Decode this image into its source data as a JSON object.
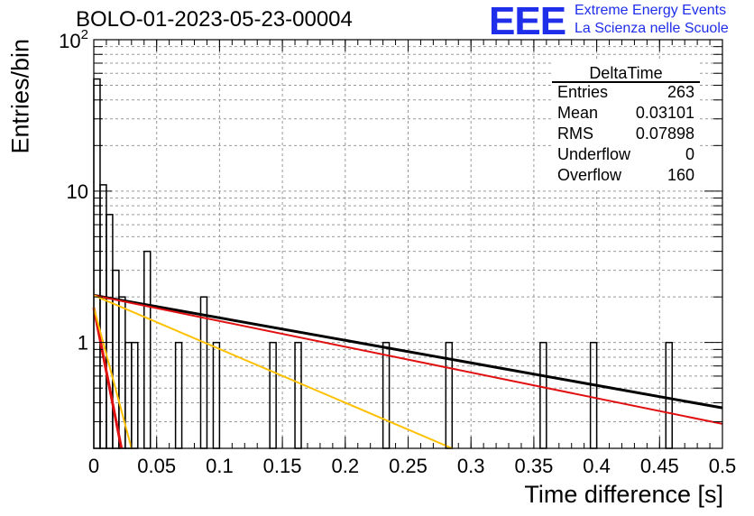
{
  "title": "BOLO-01-2023-05-23-00004",
  "branding": {
    "logo": "EEE",
    "line1": "Extreme Energy Events",
    "line2": "La Scienza nelle Scuole"
  },
  "stats_box": {
    "name": "DeltaTime",
    "rows": [
      {
        "label": "Entries",
        "value": "263"
      },
      {
        "label": "Mean",
        "value": "0.03101"
      },
      {
        "label": "RMS",
        "value": "0.07898"
      },
      {
        "label": "Underflow",
        "value": "0"
      },
      {
        "label": "Overflow",
        "value": "160"
      }
    ]
  },
  "chart_data": {
    "type": "bar",
    "title": "BOLO-01-2023-05-23-00004",
    "xlabel": "Time difference [s]",
    "ylabel": "Entries/bin",
    "xlim": [
      0,
      0.5
    ],
    "ylim": [
      0.2,
      100
    ],
    "y_scale": "log",
    "grid": true,
    "x_ticks": [
      "0",
      "0.05",
      "0.1",
      "0.15",
      "0.2",
      "0.25",
      "0.3",
      "0.35",
      "0.4",
      "0.45",
      "0.5"
    ],
    "y_tick_labels": [
      {
        "value": 1,
        "label": "1"
      },
      {
        "value": 10,
        "label": "10"
      },
      {
        "value": 100,
        "label": "10^2"
      }
    ],
    "bin_width": 0.005,
    "bins": [
      {
        "x": 0.0,
        "count": 55
      },
      {
        "x": 0.005,
        "count": 11
      },
      {
        "x": 0.01,
        "count": 7
      },
      {
        "x": 0.015,
        "count": 3
      },
      {
        "x": 0.02,
        "count": 2
      },
      {
        "x": 0.025,
        "count": 1
      },
      {
        "x": 0.03,
        "count": 1
      },
      {
        "x": 0.04,
        "count": 4
      },
      {
        "x": 0.065,
        "count": 1
      },
      {
        "x": 0.085,
        "count": 2
      },
      {
        "x": 0.095,
        "count": 1
      },
      {
        "x": 0.14,
        "count": 1
      },
      {
        "x": 0.16,
        "count": 1
      },
      {
        "x": 0.23,
        "count": 1
      },
      {
        "x": 0.28,
        "count": 1
      },
      {
        "x": 0.355,
        "count": 1
      },
      {
        "x": 0.395,
        "count": 1
      },
      {
        "x": 0.455,
        "count": 1
      }
    ],
    "fits": [
      {
        "color": "#000000",
        "width": 3,
        "points": [
          [
            0.0,
            2.05
          ],
          [
            0.5,
            0.37
          ]
        ]
      },
      {
        "color": "#e01010",
        "width": 2,
        "points": [
          [
            0.0,
            2.05
          ],
          [
            0.5,
            0.29
          ]
        ]
      },
      {
        "color": "#ffc000",
        "width": 2,
        "points": [
          [
            0.0,
            2.05
          ],
          [
            0.285,
            0.2
          ]
        ]
      },
      {
        "color": "#e01010",
        "width": 3,
        "points": [
          [
            0.0,
            1.7
          ],
          [
            0.022,
            0.2
          ]
        ]
      },
      {
        "color": "#ffc000",
        "width": 2,
        "points": [
          [
            0.0,
            1.7
          ],
          [
            0.03,
            0.2
          ]
        ]
      }
    ]
  }
}
